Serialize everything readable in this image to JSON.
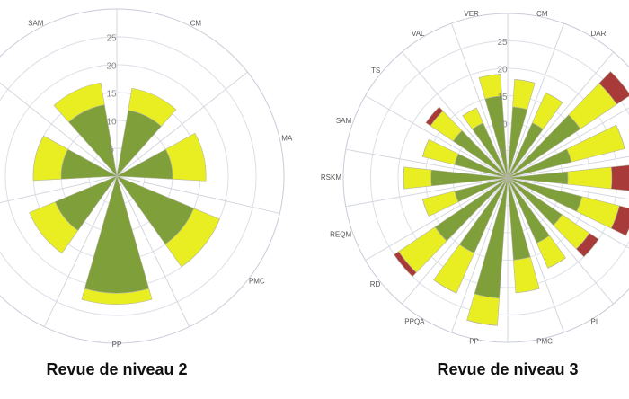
{
  "chart_data": [
    {
      "type": "rose",
      "title": "Revue de niveau 2",
      "categories": [
        "SAM",
        "CM",
        "MA",
        "PMC",
        "PP",
        null,
        null
      ],
      "series": [
        {
          "color": "#7f9f3a",
          "values": [
            13,
            12,
            10,
            15,
            21,
            12,
            10
          ]
        },
        {
          "color": "#e8ee22",
          "values": [
            4,
            4,
            6,
            5,
            2,
            5,
            5
          ]
        }
      ],
      "rlim": [
        0,
        30
      ],
      "rticks": [
        5,
        10,
        15,
        20,
        25
      ]
    },
    {
      "type": "rose",
      "title": "Revue de niveau 3",
      "categories": [
        "VER",
        "CM",
        "DAR",
        null,
        null,
        null,
        null,
        null,
        "PI",
        "PMC",
        "PP",
        "PPQA",
        "RD",
        "REQM",
        "RSKM",
        "SAM",
        "TS",
        "VAL"
      ],
      "series": [
        {
          "color": "#7f9f3a",
          "values": [
            15,
            13,
            11,
            16,
            12,
            11,
            14,
            12,
            13,
            15,
            22,
            15,
            16,
            10,
            14,
            10,
            12,
            11
          ]
        },
        {
          "color": "#e8ee22",
          "values": [
            4,
            5,
            6,
            8,
            10,
            8,
            7,
            6,
            5,
            6,
            5,
            8,
            8,
            6,
            5,
            6,
            5,
            3
          ]
        },
        {
          "color": "#a83a3a",
          "values": [
            0,
            0,
            0,
            3,
            0,
            4,
            3,
            2,
            0,
            0,
            0,
            0,
            1,
            0,
            0,
            0,
            1,
            0
          ]
        }
      ],
      "rlim": [
        0,
        30
      ],
      "rticks": [
        5,
        10,
        15,
        20,
        25
      ]
    }
  ]
}
